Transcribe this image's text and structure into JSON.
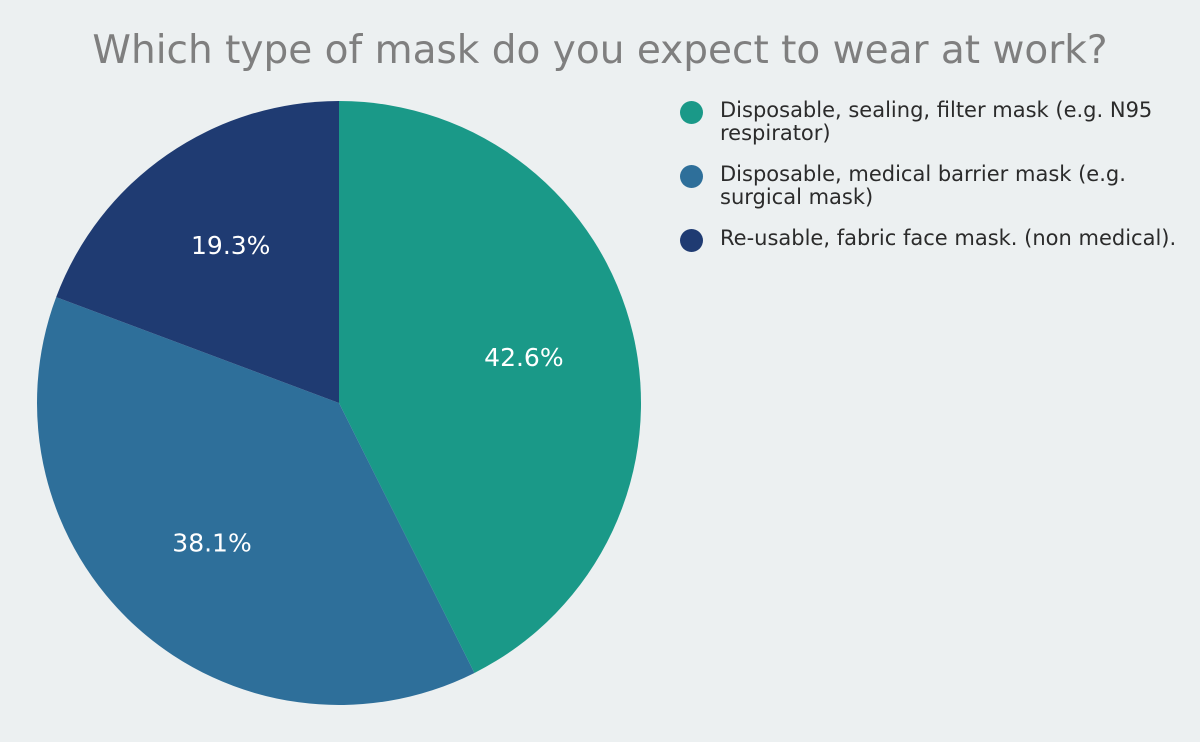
{
  "chart_data": {
    "type": "pie",
    "title": "Which type of mask do you expect to wear at work?",
    "slices": [
      {
        "label": "Disposable, sealing, filter mask (e.g. N95 respirator)",
        "value": 42.6,
        "display": "42.6%",
        "color": "#1a9988"
      },
      {
        "label": "Disposable, medical barrier mask (e.g. surgical mask)",
        "value": 38.1,
        "display": "38.1%",
        "color": "#2e6f9a"
      },
      {
        "label": "Re-usable, fabric face mask. (non medical).",
        "value": 19.3,
        "display": "19.3%",
        "color": "#1f3b72"
      }
    ],
    "legend_position": "right"
  }
}
